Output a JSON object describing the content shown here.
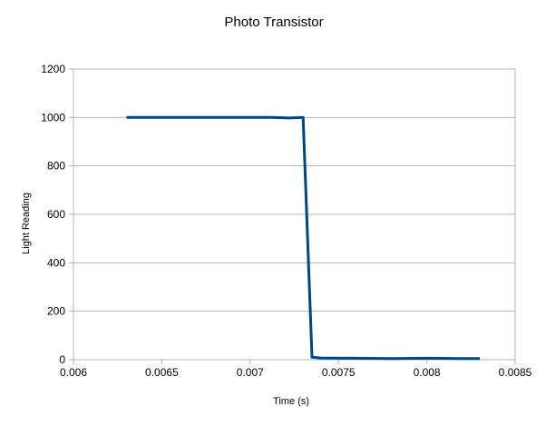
{
  "chart_data": {
    "type": "line",
    "title": "Photo Transistor",
    "xlabel": "Time (s)",
    "ylabel": "Light Reading",
    "xlim": [
      0.006,
      0.0085
    ],
    "ylim": [
      0,
      1200
    ],
    "x_ticks": [
      0.006,
      0.0065,
      0.007,
      0.0075,
      0.008,
      0.0085
    ],
    "x_tick_labels": [
      "0.006",
      "0.0065",
      "0.007",
      "0.0075",
      "0.008",
      "0.0085"
    ],
    "y_ticks": [
      0,
      200,
      400,
      600,
      800,
      1000,
      1200
    ],
    "y_tick_labels": [
      "0",
      "200",
      "400",
      "600",
      "800",
      "1000",
      "1200"
    ],
    "grid": "horizontal",
    "legend": "none",
    "series": [
      {
        "color": "#004586",
        "points": [
          [
            0.0063,
            1000
          ],
          [
            0.0065,
            1000
          ],
          [
            0.0068,
            1000
          ],
          [
            0.00712,
            1000
          ],
          [
            0.00722,
            998
          ],
          [
            0.0073,
            1000
          ],
          [
            0.00735,
            10
          ],
          [
            0.0074,
            7
          ],
          [
            0.0076,
            6
          ],
          [
            0.0078,
            5
          ],
          [
            0.008,
            6
          ],
          [
            0.0082,
            5
          ],
          [
            0.0083,
            5
          ]
        ]
      }
    ]
  }
}
